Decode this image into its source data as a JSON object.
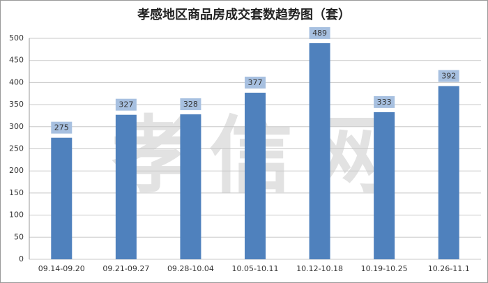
{
  "chart_data": {
    "type": "bar",
    "title": "孝感地区商品房成交套数趋势图（套）",
    "watermark": "孝信网",
    "categories": [
      "09.14-09.20",
      "09.21-09.27",
      "09.28-10.04",
      "10.05-10.11",
      "10.12-10.18",
      "10.19-10.25",
      "10.26-11.1"
    ],
    "values": [
      275,
      327,
      328,
      377,
      489,
      333,
      392
    ],
    "color": "#4f81bd",
    "label_color": "#a7c0e0",
    "ylim": [
      0,
      500
    ],
    "yticks": [
      0,
      50,
      100,
      150,
      200,
      250,
      300,
      350,
      400,
      450,
      500
    ],
    "grid": true
  }
}
